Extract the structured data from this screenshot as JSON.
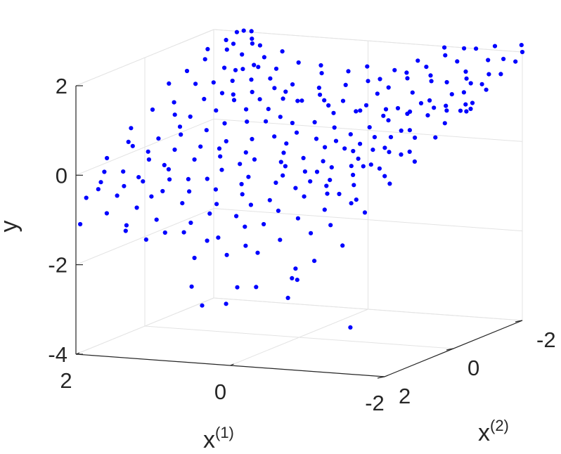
{
  "chart_data": {
    "type": "scatter",
    "title": "",
    "xlabel": "x",
    "xlabel_sup": "(1)",
    "ylabel": "x",
    "ylabel_sup": "(2)",
    "zlabel": "y",
    "x1_ticks": [
      "2",
      "0",
      "-2"
    ],
    "x2_ticks": [
      "-2",
      "0",
      "2"
    ],
    "y_ticks": [
      "2",
      "0",
      "-2",
      "-4"
    ],
    "x1_range": [
      -2,
      2
    ],
    "x2_range": [
      -2,
      2
    ],
    "y_range": [
      -4,
      2
    ],
    "grid": true,
    "marker_color": "#0000ff",
    "points": [
      [
        1.6,
        -2.2,
        1.95
      ],
      [
        1.7,
        -2.0,
        1.98
      ],
      [
        1.55,
        -2.1,
        1.82
      ],
      [
        1.75,
        -1.8,
        1.86
      ],
      [
        1.4,
        -2.0,
        1.72
      ],
      [
        1.65,
        -1.6,
        1.72
      ],
      [
        1.5,
        -1.7,
        1.6
      ],
      [
        1.45,
        -1.4,
        1.35
      ],
      [
        1.3,
        -1.6,
        1.42
      ],
      [
        1.2,
        -1.5,
        1.42
      ],
      [
        1.55,
        -1.3,
        1.42
      ],
      [
        1.4,
        -1.2,
        1.18
      ],
      [
        1.2,
        -1.3,
        1.2
      ],
      [
        1.0,
        -1.4,
        1.22
      ],
      [
        1.1,
        -1.1,
        1.0
      ],
      [
        0.9,
        -1.3,
        1.05
      ],
      [
        1.3,
        -1.0,
        0.95
      ],
      [
        0.7,
        -1.1,
        0.9
      ],
      [
        0.5,
        -1.2,
        0.85
      ],
      [
        0.3,
        -1.4,
        0.82
      ],
      [
        0.1,
        -1.5,
        0.8
      ],
      [
        -0.2,
        -1.5,
        0.74
      ],
      [
        -0.5,
        -1.4,
        0.72
      ],
      [
        -0.7,
        -1.3,
        0.8
      ],
      [
        -0.9,
        -1.2,
        0.78
      ],
      [
        -0.3,
        -1.1,
        0.76
      ],
      [
        0.0,
        -1.0,
        0.7
      ],
      [
        -1.0,
        -1.3,
        0.95
      ],
      [
        -1.2,
        -1.1,
        1.1
      ],
      [
        -1.4,
        -1.3,
        1.2
      ],
      [
        -1.6,
        -1.2,
        1.3
      ],
      [
        -1.8,
        -1.4,
        1.32
      ],
      [
        -1.5,
        -1.5,
        1.5
      ],
      [
        -1.7,
        -1.7,
        1.56
      ],
      [
        -1.9,
        -1.6,
        1.62
      ],
      [
        -1.6,
        -1.9,
        1.8
      ],
      [
        -1.8,
        -1.9,
        1.85
      ],
      [
        -2.0,
        -1.8,
        1.85
      ],
      [
        -1.9,
        -2.2,
        2.08
      ],
      [
        -2.0,
        -2.0,
        2.0
      ],
      [
        -1.7,
        -1.5,
        1.4
      ],
      [
        -1.2,
        -1.6,
        1.35
      ],
      [
        -1.3,
        -1.0,
        0.98
      ],
      [
        -1.0,
        -0.9,
        0.84
      ],
      [
        -0.8,
        -0.8,
        0.7
      ],
      [
        -1.5,
        -0.9,
        1.08
      ],
      [
        -1.8,
        -1.0,
        1.15
      ],
      [
        -1.6,
        -0.7,
        1.05
      ],
      [
        -1.9,
        -0.6,
        1.1
      ],
      [
        -1.6,
        -1.1,
        0.92
      ],
      [
        1.2,
        -0.8,
        0.9
      ],
      [
        1.0,
        -0.7,
        0.75
      ],
      [
        0.8,
        -0.9,
        0.72
      ],
      [
        0.6,
        -0.8,
        0.6
      ],
      [
        0.4,
        -0.7,
        0.52
      ],
      [
        0.2,
        -0.9,
        0.5
      ],
      [
        -0.1,
        -0.8,
        0.45
      ],
      [
        -0.4,
        -0.6,
        0.4
      ],
      [
        -0.6,
        -0.7,
        0.55
      ],
      [
        0.9,
        -0.5,
        0.55
      ],
      [
        0.5,
        -0.4,
        0.3
      ],
      [
        0.3,
        -0.3,
        0.2
      ],
      [
        0.0,
        -0.5,
        0.28
      ],
      [
        -0.2,
        -0.3,
        0.18
      ],
      [
        -0.5,
        -0.2,
        0.22
      ],
      [
        -0.8,
        -0.4,
        0.45
      ],
      [
        -1.1,
        -0.5,
        0.6
      ],
      [
        -1.3,
        -0.3,
        0.7
      ],
      [
        1.1,
        -0.3,
        0.55
      ],
      [
        1.3,
        -0.5,
        0.75
      ],
      [
        1.5,
        -0.6,
        0.95
      ],
      [
        1.7,
        -0.8,
        1.2
      ],
      [
        0.7,
        -0.2,
        0.28
      ],
      [
        0.2,
        0.0,
        0.1
      ],
      [
        -0.1,
        0.1,
        0.05
      ],
      [
        -0.4,
        0.2,
        0.05
      ],
      [
        -0.7,
        0.0,
        0.25
      ],
      [
        -1.0,
        0.1,
        0.35
      ],
      [
        -1.2,
        0.2,
        0.45
      ],
      [
        -1.5,
        0.0,
        0.65
      ],
      [
        0.6,
        0.2,
        0.12
      ],
      [
        0.9,
        0.1,
        0.3
      ],
      [
        1.2,
        0.0,
        0.48
      ],
      [
        1.5,
        -0.2,
        0.68
      ],
      [
        1.8,
        -0.4,
        0.9
      ],
      [
        0.4,
        0.4,
        0.05
      ],
      [
        0.0,
        0.4,
        -0.05
      ],
      [
        -0.3,
        0.5,
        -0.1
      ],
      [
        -0.6,
        0.4,
        0.0
      ],
      [
        -0.9,
        0.5,
        0.1
      ],
      [
        -1.2,
        0.6,
        0.2
      ],
      [
        -1.5,
        0.4,
        0.4
      ],
      [
        0.8,
        0.5,
        0.1
      ],
      [
        1.1,
        0.4,
        0.25
      ],
      [
        1.4,
        0.3,
        0.45
      ],
      [
        0.3,
        0.8,
        -0.2
      ],
      [
        -0.1,
        0.9,
        -0.25
      ],
      [
        -0.5,
        0.8,
        -0.2
      ],
      [
        -0.8,
        0.9,
        -0.1
      ],
      [
        0.6,
        0.9,
        -0.05
      ],
      [
        1.0,
        0.8,
        0.1
      ],
      [
        1.3,
        0.7,
        0.25
      ],
      [
        1.6,
        0.5,
        0.4
      ],
      [
        -1.1,
        0.9,
        0.05
      ],
      [
        -1.4,
        0.8,
        0.2
      ],
      [
        0.2,
        1.2,
        -0.45
      ],
      [
        -0.2,
        1.3,
        -0.5
      ],
      [
        -0.6,
        1.2,
        -0.4
      ],
      [
        0.5,
        1.3,
        -0.35
      ],
      [
        0.9,
        1.2,
        -0.2
      ],
      [
        1.2,
        1.1,
        -0.05
      ],
      [
        -0.9,
        1.2,
        -0.3
      ],
      [
        1.5,
        1.0,
        0.1
      ],
      [
        -1.2,
        1.1,
        -0.1
      ],
      [
        1.8,
        0.8,
        0.3
      ],
      [
        0.1,
        1.6,
        -0.8
      ],
      [
        -0.3,
        1.7,
        -0.9
      ],
      [
        0.4,
        1.7,
        -0.75
      ],
      [
        0.8,
        1.6,
        -0.6
      ],
      [
        -0.7,
        1.6,
        -0.75
      ],
      [
        1.1,
        1.5,
        -0.4
      ],
      [
        1.4,
        1.4,
        -0.25
      ],
      [
        -1.0,
        1.5,
        -0.55
      ],
      [
        1.7,
        1.3,
        -0.1
      ],
      [
        -1.3,
        1.4,
        -0.4
      ],
      [
        0.2,
        1.9,
        -1.2
      ],
      [
        -0.2,
        2.0,
        -1.3
      ],
      [
        0.6,
        2.0,
        -1.1
      ],
      [
        -0.6,
        1.9,
        -1.15
      ],
      [
        1.0,
        1.9,
        -0.9
      ],
      [
        1.3,
        1.8,
        -0.7
      ],
      [
        1.6,
        1.7,
        -0.5
      ],
      [
        -1.0,
        1.9,
        -0.95
      ],
      [
        1.9,
        1.5,
        -0.3
      ],
      [
        0.0,
        2.1,
        -1.5
      ],
      [
        -1.6,
        -1.4,
        1.44
      ],
      [
        -1.4,
        -1.7,
        1.58
      ],
      [
        -1.2,
        -1.9,
        1.72
      ],
      [
        -1.0,
        -2.0,
        1.8
      ],
      [
        -0.8,
        -1.9,
        1.55
      ],
      [
        -0.6,
        -1.8,
        1.3
      ],
      [
        -0.4,
        -1.7,
        1.1
      ],
      [
        -0.2,
        -1.9,
        1.2
      ],
      [
        0.2,
        -1.8,
        1.05
      ],
      [
        0.5,
        -1.7,
        0.98
      ],
      [
        0.8,
        -1.6,
        1.05
      ],
      [
        1.1,
        -1.8,
        1.3
      ],
      [
        1.3,
        -1.9,
        1.5
      ],
      [
        0.9,
        -2.0,
        1.4
      ],
      [
        0.6,
        -2.0,
        1.2
      ],
      [
        0.3,
        -2.1,
        1.25
      ],
      [
        0.0,
        -2.0,
        1.1
      ],
      [
        -0.3,
        -2.1,
        1.35
      ],
      [
        -0.6,
        -2.1,
        1.6
      ],
      [
        -0.9,
        -2.2,
        1.9
      ],
      [
        -1.8,
        -0.2,
        0.95
      ],
      [
        -2.0,
        -0.5,
        1.2
      ],
      [
        -1.9,
        0.3,
        0.8
      ],
      [
        -1.7,
        0.6,
        0.55
      ],
      [
        -1.9,
        0.9,
        0.45
      ],
      [
        -1.6,
        1.1,
        0.15
      ],
      [
        -1.8,
        1.4,
        0.1
      ],
      [
        -1.5,
        1.7,
        -0.2
      ],
      [
        -1.7,
        1.9,
        -0.4
      ],
      [
        -1.3,
        2.0,
        -0.7
      ],
      [
        1.9,
        -1.0,
        1.4
      ],
      [
        1.8,
        -1.3,
        1.58
      ],
      [
        1.9,
        -1.6,
        1.7
      ],
      [
        1.7,
        -1.9,
        1.75
      ],
      [
        2.0,
        -0.7,
        1.2
      ],
      [
        1.9,
        0.0,
        0.85
      ],
      [
        2.0,
        0.4,
        0.55
      ],
      [
        1.9,
        0.7,
        0.35
      ],
      [
        2.0,
        1.1,
        0.1
      ],
      [
        1.9,
        1.4,
        -0.1
      ],
      [
        1.8,
        1.8,
        -0.35
      ],
      [
        2.0,
        1.7,
        -0.6
      ],
      [
        1.6,
        2.0,
        -0.8
      ],
      [
        1.3,
        2.1,
        -1.0
      ],
      [
        1.0,
        2.2,
        -1.25
      ],
      [
        0.3,
        -0.6,
        0.35
      ],
      [
        -0.3,
        -0.4,
        0.3
      ],
      [
        0.7,
        -0.6,
        0.55
      ],
      [
        -0.7,
        -0.2,
        0.35
      ],
      [
        0.1,
        0.3,
        0.0
      ],
      [
        -0.5,
        0.6,
        -0.05
      ],
      [
        0.5,
        0.6,
        0.0
      ],
      [
        -0.1,
        0.7,
        -0.15
      ],
      [
        0.9,
        0.3,
        0.2
      ],
      [
        -0.9,
        0.3,
        0.2
      ],
      [
        0.3,
        1.0,
        -0.3
      ],
      [
        -0.4,
        1.0,
        -0.3
      ],
      [
        0.7,
        1.1,
        -0.2
      ],
      [
        -0.8,
        1.0,
        -0.2
      ],
      [
        1.1,
        1.3,
        -0.2
      ],
      [
        -1.1,
        1.3,
        -0.25
      ],
      [
        0.0,
        1.4,
        -0.6
      ],
      [
        0.4,
        1.5,
        -0.6
      ],
      [
        -0.4,
        1.5,
        -0.65
      ],
      [
        0.8,
        1.4,
        -0.4
      ],
      [
        -1.8,
        -0.8,
        1.18
      ],
      [
        -1.4,
        -0.6,
        0.95
      ],
      [
        -1.1,
        -0.2,
        0.55
      ],
      [
        -1.3,
        0.3,
        0.4
      ],
      [
        -1.1,
        0.6,
        0.15
      ],
      [
        1.4,
        -0.9,
        1.0
      ],
      [
        1.6,
        -1.1,
        1.15
      ],
      [
        1.4,
        -1.5,
        1.35
      ],
      [
        1.7,
        -0.2,
        0.7
      ],
      [
        1.5,
        0.1,
        0.55
      ],
      [
        1.6,
        0.8,
        0.2
      ],
      [
        1.3,
        1.0,
        0.0
      ],
      [
        1.5,
        1.3,
        -0.2
      ],
      [
        1.2,
        1.6,
        -0.5
      ],
      [
        1.6,
        1.5,
        -0.35
      ],
      [
        -0.2,
        -1.2,
        0.7
      ],
      [
        0.2,
        -1.3,
        0.75
      ],
      [
        0.6,
        -1.3,
        0.8
      ],
      [
        -0.6,
        -1.1,
        0.68
      ],
      [
        1.0,
        -1.1,
        0.85
      ],
      [
        -1.0,
        -1.6,
        1.35
      ],
      [
        -0.3,
        -1.6,
        0.98
      ],
      [
        0.4,
        -1.5,
        0.9
      ],
      [
        0.8,
        -1.4,
        0.95
      ],
      [
        -0.8,
        -1.5,
        1.1
      ],
      [
        0.1,
        -2.2,
        1.35
      ],
      [
        -0.5,
        -2.0,
        1.35
      ],
      [
        0.7,
        -2.2,
        1.3
      ],
      [
        -1.2,
        -2.1,
        1.95
      ],
      [
        1.5,
        -2.0,
        1.75
      ],
      [
        -1.4,
        -2.0,
        2.0
      ],
      [
        -1.6,
        -2.1,
        2.05
      ],
      [
        1.2,
        -2.2,
        1.55
      ],
      [
        -0.9,
        -1.8,
        1.4
      ],
      [
        1.7,
        -2.2,
        1.95
      ],
      [
        0.3,
        2.0,
        -1.25
      ],
      [
        0.8,
        2.1,
        -1.1
      ],
      [
        -0.4,
        2.1,
        -1.4
      ],
      [
        0.6,
        1.8,
        -0.95
      ],
      [
        -0.1,
        1.8,
        -0.95
      ],
      [
        -0.4,
        1.0,
        -2.1
      ],
      [
        -0.6,
        1.4,
        -2.2
      ],
      [
        0.5,
        2.0,
        -2.3
      ],
      [
        1.0,
        0.8,
        -2.1
      ],
      [
        0.2,
        0.8,
        -2.65
      ],
      [
        0.4,
        0.9,
        -2.65
      ],
      [
        0.1,
        0.1,
        -3.1
      ],
      [
        0.9,
        0.8,
        -3.15
      ],
      [
        -1.2,
        1.2,
        -3.25
      ],
      [
        0.5,
        1.0,
        -3.0
      ],
      [
        -1.0,
        1.8,
        -1.6
      ],
      [
        -0.8,
        2.0,
        -1.95
      ],
      [
        1.4,
        1.9,
        -1.2
      ],
      [
        1.9,
        2.1,
        -1.05
      ],
      [
        -1.5,
        2.1,
        -1.1
      ]
    ]
  }
}
